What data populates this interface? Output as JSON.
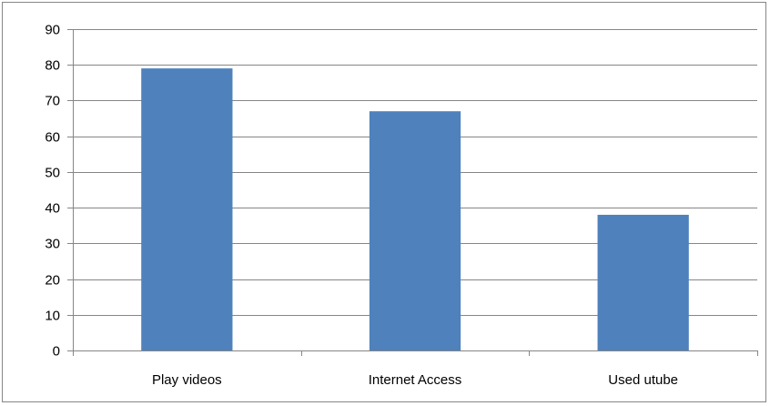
{
  "chart_data": {
    "type": "bar",
    "title": "",
    "xlabel": "",
    "ylabel": "",
    "categories": [
      "Play videos",
      "Internet Access",
      "Used utube"
    ],
    "values": [
      79,
      67,
      38
    ],
    "ylim": [
      0,
      90
    ],
    "yticks": [
      0,
      10,
      20,
      30,
      40,
      50,
      60,
      70,
      80,
      90
    ],
    "grid": true,
    "legend": "none",
    "bar_color": "#4F81BD",
    "grid_color": "#868686",
    "axis_color": "#868686"
  }
}
